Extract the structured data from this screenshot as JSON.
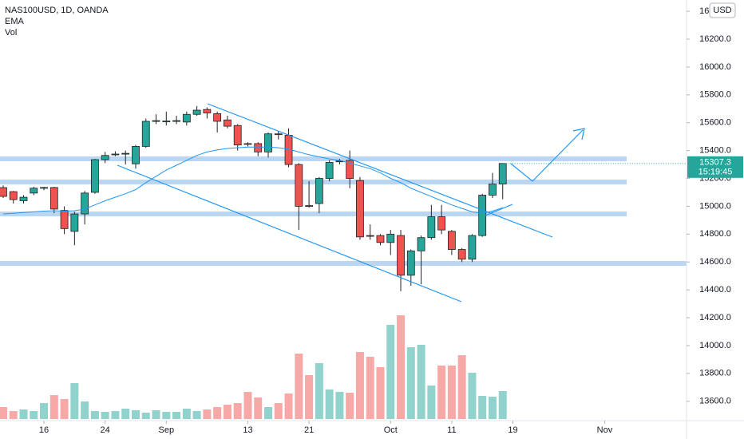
{
  "chart_data": {
    "type": "candlestick",
    "title": "NAS100USD, 1D, OANDA",
    "indicators": [
      "EMA",
      "Vol"
    ],
    "currency": "USD",
    "last_price": 15307.3,
    "countdown": "15:19:45",
    "up_color": "#26a69a",
    "down_color": "#ef5350",
    "ema_color": "#2196f3",
    "open": [
      15134,
      15105,
      15040,
      15095,
      15130,
      15135,
      14970,
      14820,
      14945,
      15100,
      15335,
      15370,
      15375,
      15305,
      15430,
      15610,
      15610,
      15612,
      15605,
      15660,
      15695,
      15665,
      15620,
      15580,
      15450,
      15450,
      15390,
      15520,
      15510,
      15300,
      15005,
      15020,
      15200,
      15320,
      15330,
      15185,
      14790,
      14790,
      14740,
      14790,
      14505,
      14680,
      14775,
      14925,
      14820,
      14690,
      14620,
      14790,
      15080,
      15160
    ],
    "high": [
      15150,
      15110,
      15080,
      15140,
      15140,
      15140,
      15000,
      14960,
      15110,
      15340,
      15390,
      15395,
      15400,
      15440,
      15630,
      15660,
      15680,
      15650,
      15680,
      15720,
      15710,
      15680,
      15650,
      15590,
      15460,
      15460,
      15530,
      15540,
      15560,
      15310,
      15180,
      15210,
      15330,
      15340,
      15400,
      15210,
      14870,
      14800,
      14830,
      14830,
      14690,
      14790,
      15010,
      15010,
      14830,
      14700,
      14800,
      15090,
      15240,
      15310
    ],
    "low": [
      15060,
      15020,
      15020,
      15080,
      15115,
      14950,
      14800,
      14720,
      14870,
      15090,
      15310,
      15360,
      15300,
      15270,
      15420,
      15590,
      15580,
      15590,
      15580,
      15650,
      15630,
      15530,
      15560,
      15400,
      15430,
      15360,
      15350,
      15480,
      15280,
      14830,
      14990,
      14950,
      15180,
      15300,
      15130,
      14760,
      14760,
      14720,
      14650,
      14390,
      14430,
      14440,
      14760,
      14800,
      14650,
      14600,
      14600,
      14780,
      15060,
      15050
    ],
    "close": [
      15071,
      15048,
      15065,
      15130,
      15135,
      14980,
      14840,
      14945,
      15095,
      15335,
      15365,
      15375,
      15380,
      15430,
      15610,
      15615,
      15612,
      15615,
      15660,
      15690,
      15670,
      15610,
      15575,
      15440,
      15445,
      15390,
      15520,
      15515,
      15300,
      15000,
      15000,
      15200,
      15315,
      15325,
      15200,
      14780,
      14785,
      14740,
      14800,
      14505,
      14680,
      14775,
      14925,
      14830,
      14690,
      14620,
      14790,
      15080,
      15160,
      15307.3
    ],
    "volume": [
      15,
      10,
      12,
      10,
      20,
      30,
      25,
      45,
      22,
      10,
      9,
      10,
      13,
      11,
      8,
      11,
      9,
      9,
      13,
      10,
      12,
      15,
      18,
      20,
      34,
      27,
      15,
      20,
      32,
      82,
      55,
      70,
      37,
      34,
      33,
      84,
      78,
      65,
      118,
      130,
      90,
      93,
      42,
      67,
      67,
      80,
      58,
      29,
      28,
      35
    ],
    "ema": [
      14945,
      14950,
      14955,
      14960,
      14965,
      14968,
      14965,
      14968,
      14980,
      15010,
      15040,
      15065,
      15090,
      15120,
      15170,
      15215,
      15260,
      15295,
      15330,
      15365,
      15390,
      15405,
      15415,
      15420,
      15425,
      15425,
      15425,
      15420,
      15410,
      15390,
      15370,
      15355,
      15340,
      15330,
      15310,
      15290,
      15270,
      15240,
      15200,
      15170,
      15130,
      15100,
      15070,
      15040,
      15010,
      14985,
      14960,
      14950,
      14965,
      14990
    ],
    "xlim": [
      -0.31,
      67.03
    ],
    "xticks": [
      {
        "value": 4,
        "label": "16"
      },
      {
        "value": 10,
        "label": "24"
      },
      {
        "value": 16,
        "label": "Sep"
      },
      {
        "value": 24,
        "label": "13"
      },
      {
        "value": 30,
        "label": "21"
      },
      {
        "value": 38,
        "label": "Oct"
      },
      {
        "value": 44,
        "label": "11"
      },
      {
        "value": 50,
        "label": "19"
      },
      {
        "value": 59,
        "label": "Nov"
      }
    ],
    "ylim": [
      13461,
      16481
    ],
    "yticks": [
      {
        "value": 13600,
        "label": "13600.0"
      },
      {
        "value": 13800,
        "label": "13800.0"
      },
      {
        "value": 14000,
        "label": "14000.0"
      },
      {
        "value": 14200,
        "label": "14200.0"
      },
      {
        "value": 14400,
        "label": "14400.0"
      },
      {
        "value": 14600,
        "label": "14600.0"
      },
      {
        "value": 14800,
        "label": "14800.0"
      },
      {
        "value": 15000,
        "label": "15000.0"
      },
      {
        "value": 15200,
        "label": "15200.0"
      },
      {
        "value": 15400,
        "label": "15400.0"
      },
      {
        "value": 15600,
        "label": "15600.0"
      },
      {
        "value": 15800,
        "label": "15800.0"
      },
      {
        "value": 16000,
        "label": "16000.0"
      },
      {
        "value": 16200,
        "label": "16200.0"
      },
      {
        "value": 16400,
        "label": "16400.0"
      }
    ],
    "grid": false
  }
}
